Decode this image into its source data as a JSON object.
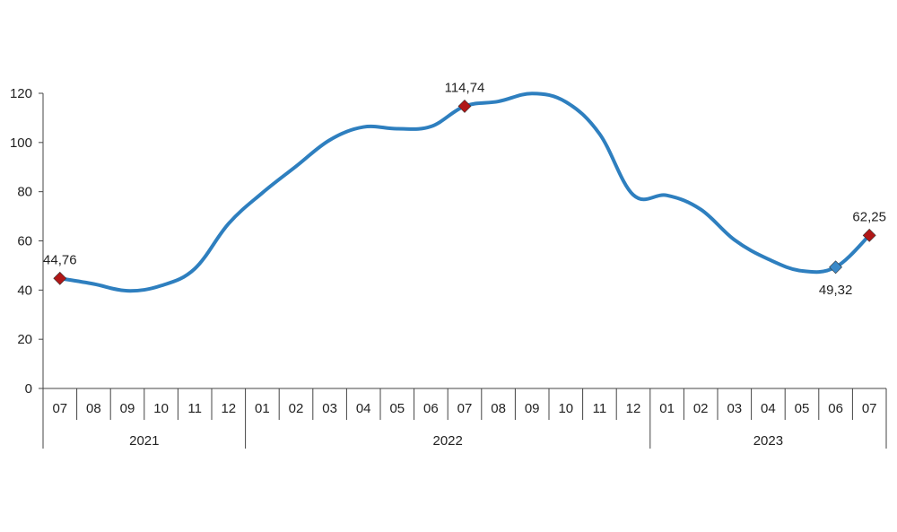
{
  "chart_data": {
    "type": "line",
    "x": [
      "07",
      "08",
      "09",
      "10",
      "11",
      "12",
      "01",
      "02",
      "03",
      "04",
      "05",
      "06",
      "07",
      "08",
      "09",
      "10",
      "11",
      "12",
      "01",
      "02",
      "03",
      "04",
      "05",
      "06",
      "07"
    ],
    "year_groups": [
      {
        "label": "2021",
        "start": 0,
        "end": 5
      },
      {
        "label": "2022",
        "start": 6,
        "end": 17
      },
      {
        "label": "2023",
        "start": 18,
        "end": 24
      }
    ],
    "series": [
      {
        "values": [
          44.76,
          42.5,
          39.7,
          41.8,
          48.7,
          67.0,
          79.5,
          90.3,
          101.0,
          106.3,
          105.6,
          106.5,
          114.74,
          116.7,
          119.9,
          116.5,
          103.5,
          78.7,
          78.5,
          72.8,
          60.4,
          52.6,
          47.8,
          49.32,
          62.25
        ]
      }
    ],
    "data_labels": [
      {
        "index": 0,
        "text": "44,76",
        "marker": "diamond",
        "color": "#b01717"
      },
      {
        "index": 12,
        "text": "114,74",
        "marker": "diamond",
        "color": "#b01717"
      },
      {
        "index": 23,
        "text": "49,32",
        "marker": "diamond",
        "color": "#3c8ac9"
      },
      {
        "index": 24,
        "text": "62,25",
        "marker": "diamond",
        "color": "#b01717"
      }
    ],
    "y_ticks": [
      0,
      20,
      40,
      60,
      80,
      100,
      120
    ],
    "ylim": [
      0,
      120
    ],
    "line_color": "#2e7fbf",
    "grid": false,
    "legend": "none"
  }
}
